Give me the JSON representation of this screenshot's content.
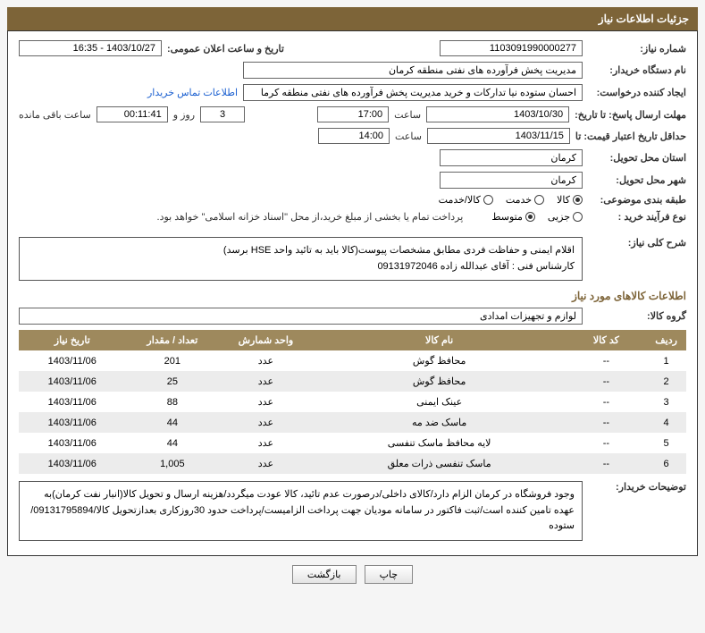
{
  "header": {
    "title": "جزئیات اطلاعات نیاز"
  },
  "form": {
    "requestNumLabel": "شماره نیاز:",
    "requestNum": "1103091990000277",
    "announceDateLabel": "تاریخ و ساعت اعلان عمومی:",
    "announceDate": "1403/10/27 - 16:35",
    "buyerOrgLabel": "نام دستگاه خریدار:",
    "buyerOrg": "مدیریت پخش فرآورده های نفتی منطقه کرمان",
    "creatorLabel": "ایجاد کننده درخواست:",
    "creator": "احسان  ستوده نیا  تدارکات و خرید  مدیریت پخش فرآورده های نفتی منطقه کرما",
    "buyerContactLink": "اطلاعات تماس خریدار",
    "deadlineLabel": "مهلت ارسال پاسخ: تا تاریخ:",
    "deadlineDate": "1403/10/30",
    "timeLabel": "ساعت",
    "deadlineTime": "17:00",
    "dayAndLabel": "روز و",
    "countdownDays": "3",
    "countdownTime": "00:11:41",
    "remainingLabel": "ساعت باقی مانده",
    "validityLabel": "حداقل تاریخ اعتبار قیمت: تا",
    "validityDate": "1403/11/15",
    "validityTime": "14:00",
    "provinceLabel": "استان محل تحویل:",
    "province": "کرمان",
    "cityLabel": "شهر محل تحویل:",
    "city": "کرمان",
    "categoryLabel": "طبقه بندی موضوعی:",
    "purchaseTypeLabel": "نوع فرآیند خرید :",
    "paymentNote": "پرداخت تمام یا بخشی از مبلغ خرید،از محل \"اسناد خزانه اسلامی\" خواهد بود.",
    "radios": {
      "category": [
        {
          "label": "کالا",
          "checked": true
        },
        {
          "label": "خدمت",
          "checked": false
        },
        {
          "label": "کالا/خدمت",
          "checked": false
        }
      ],
      "purchase": [
        {
          "label": "جزیی",
          "checked": false
        },
        {
          "label": "متوسط",
          "checked": true
        }
      ]
    }
  },
  "desc": {
    "titleLabel": "شرح کلی نیاز:",
    "line1": "اقلام ایمنی و حفاظت فردی مطابق مشخصات پیوست(کالا باید به تائید واحد HSE برسد)",
    "line2": "کارشناس فنی : آقای عبدالله زاده 09131972046"
  },
  "goods": {
    "sectionTitle": "اطلاعات کالاهای مورد نیاز",
    "groupLabel": "گروه کالا:",
    "group": "لوازم و تجهیزات امدادی",
    "columns": [
      "ردیف",
      "کد کالا",
      "نام کالا",
      "واحد شمارش",
      "تعداد / مقدار",
      "تاریخ نیاز"
    ],
    "rows": [
      [
        "1",
        "--",
        "محافظ گوش",
        "عدد",
        "201",
        "1403/11/06"
      ],
      [
        "2",
        "--",
        "محافظ گوش",
        "عدد",
        "25",
        "1403/11/06"
      ],
      [
        "3",
        "--",
        "عینک ایمنی",
        "عدد",
        "88",
        "1403/11/06"
      ],
      [
        "4",
        "--",
        "ماسک ضد مه",
        "عدد",
        "44",
        "1403/11/06"
      ],
      [
        "5",
        "--",
        "لایه محافظ ماسک تنفسی",
        "عدد",
        "44",
        "1403/11/06"
      ],
      [
        "6",
        "--",
        "ماسک تنفسی ذرات معلق",
        "عدد",
        "1,005",
        "1403/11/06"
      ]
    ]
  },
  "buyerNotes": {
    "label": "توضیحات خریدار:",
    "text": "وجود فروشگاه در کرمان الزام دارد/کالای داخلی/درصورت عدم تائید، کالا عودت میگردد/هزینه ارسال و تحویل کالا(انبار نفت کرمان)به عهده تامین کننده است/ثبت فاکتور در سامانه مودیان جهت پرداخت الزامیست/پرداخت حدود 30روزکاری بعدازتحویل کالا/09131795894/ستوده"
  },
  "buttons": {
    "print": "چاپ",
    "back": "بازگشت"
  }
}
